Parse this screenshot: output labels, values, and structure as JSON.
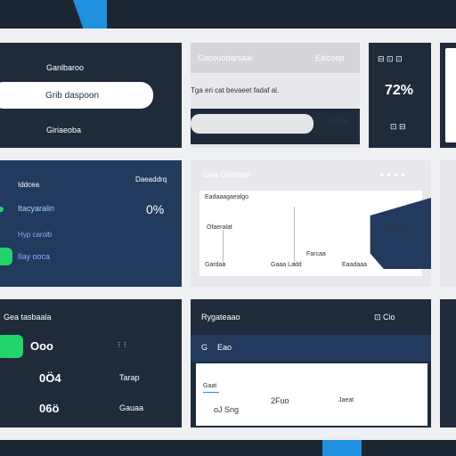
{
  "topbar": {
    "accent_color": "#1f8fe0"
  },
  "panel1": {
    "title": "Ganlbaroo",
    "pill_label": "Grib daspoon",
    "footer": "Giriaeoba"
  },
  "panel2": {
    "header": "Gacouobarsaal",
    "header_right": "Ealcoop",
    "body": "Tga eri cat bevaeet fadaf al.",
    "value": "2ЯЭ"
  },
  "panel3": {
    "icons": "⊟ ⊡ ⊡",
    "value": "72%",
    "icons_bottom": "⊡ ⊟"
  },
  "panel5": {
    "label_top_right": "Daeaddrq",
    "items": [
      "Iddcea",
      "Itacyaralin",
      "Hyp carolb",
      "Ilay ooca"
    ],
    "percent": "0%"
  },
  "panel6": {
    "header": "Gea Gelaraol",
    "card_title": "Eadaaagaealgo",
    "card_sub": "Ofaeralat",
    "col1": "Gardaa",
    "col2": "Gaaa Ladd",
    "col3": "Eaadaaa",
    "col_mid": "Farcaa",
    "tab_label": "GBaC"
  },
  "panel8": {
    "title": "Gea tasbaala",
    "rows": [
      {
        "value": "Ooo",
        "right": ""
      },
      {
        "value": "0Ö4",
        "right": "Tarap"
      },
      {
        "value": "06ö",
        "right": "Gauaa"
      }
    ]
  },
  "panel9": {
    "title": "Rygateaao",
    "header_right": "⊡ Cio",
    "sub_icon": "G",
    "sub_label": "Eao",
    "card_label": "Gaat",
    "col1": "oJ Sng",
    "col2": "2Fuo",
    "col3": "Jaeat"
  }
}
